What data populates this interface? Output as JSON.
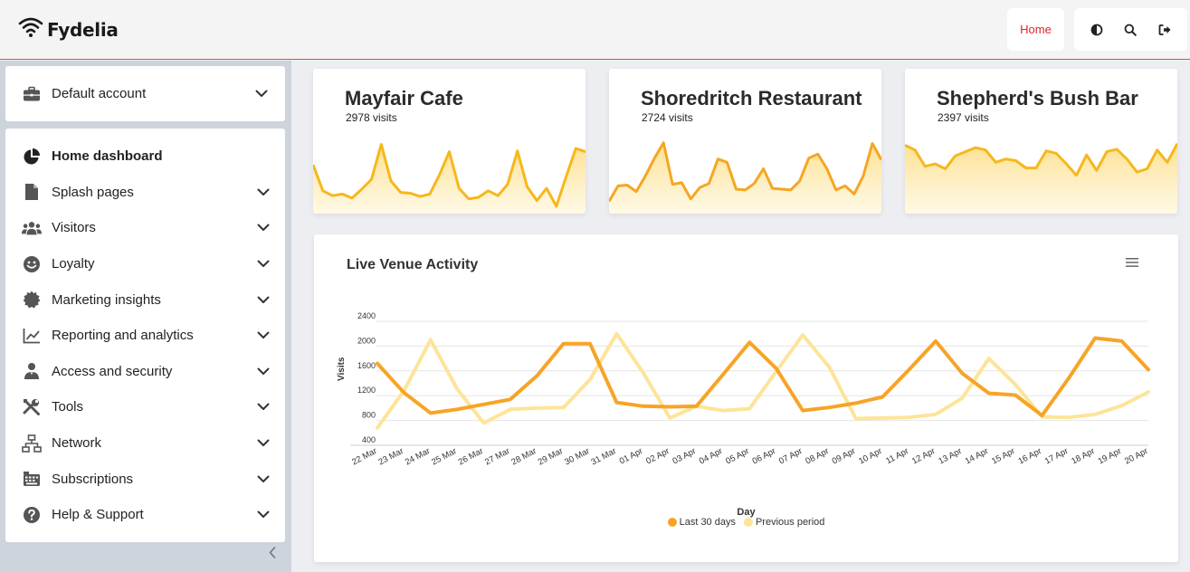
{
  "header": {
    "brand": "Fydelia",
    "home_label": "Home",
    "icons": [
      "wifi-icon",
      "contrast-icon",
      "search-icon",
      "logout-icon"
    ],
    "accent_color": "#e02424"
  },
  "sidebar": {
    "account_label": "Default account",
    "items": [
      {
        "label": "Home dashboard",
        "icon": "pie-chart-icon",
        "active": true,
        "has_children": false
      },
      {
        "label": "Splash pages",
        "icon": "file-icon",
        "has_children": true
      },
      {
        "label": "Visitors",
        "icon": "users-icon",
        "has_children": true
      },
      {
        "label": "Loyalty",
        "icon": "smile-icon",
        "has_children": true
      },
      {
        "label": "Marketing insights",
        "icon": "certificate-icon",
        "has_children": true
      },
      {
        "label": "Reporting and analytics",
        "icon": "line-chart-icon",
        "has_children": true
      },
      {
        "label": "Access and security",
        "icon": "user-shield-icon",
        "has_children": true
      },
      {
        "label": "Tools",
        "icon": "tools-icon",
        "has_children": true
      },
      {
        "label": "Network",
        "icon": "network-icon",
        "has_children": true
      },
      {
        "label": "Subscriptions",
        "icon": "keyboard-icon",
        "has_children": true
      },
      {
        "label": "Help & Support",
        "icon": "question-icon",
        "has_children": true
      }
    ]
  },
  "venues": [
    {
      "name": "Mayfair Cafe",
      "visits": "2978 visits",
      "trend": [
        60,
        28,
        22,
        24,
        19,
        30,
        42,
        85,
        40,
        26,
        25,
        21,
        24,
        48,
        76,
        31,
        18,
        20,
        28,
        22,
        36,
        77,
        33,
        16,
        31,
        9,
        45,
        80,
        76
      ]
    },
    {
      "name": "Shoredritch Restaurant",
      "visits": "2724 visits",
      "trend": [
        15,
        34,
        35,
        27,
        46,
        68,
        87,
        36,
        38,
        18,
        32,
        37,
        67,
        63,
        30,
        29,
        37,
        55,
        31,
        30,
        29,
        40,
        68,
        73,
        55,
        29,
        34,
        24,
        46,
        86,
        66
      ]
    },
    {
      "name": "Shepherd's Bush Bar",
      "visits": "2397 visits",
      "trend": [
        84,
        78,
        58,
        61,
        55,
        71,
        76,
        81,
        78,
        63,
        67,
        65,
        56,
        56,
        77,
        74,
        61,
        47,
        72,
        53,
        76,
        79,
        67,
        51,
        55,
        78,
        63,
        86
      ]
    }
  ],
  "activity": {
    "title": "Live Venue Activity",
    "menu_icon": "menu-icon"
  },
  "chart_data": {
    "type": "line",
    "title": "Live Venue Activity",
    "xlabel": "Day",
    "ylabel": "Visits",
    "categories": [
      "22 Mar",
      "23 Mar",
      "24 Mar",
      "25 Mar",
      "26 Mar",
      "27 Mar",
      "28 Mar",
      "29 Mar",
      "30 Mar",
      "31 Mar",
      "01 Apr",
      "02 Apr",
      "03 Apr",
      "04 Apr",
      "05 Apr",
      "06 Apr",
      "07 Apr",
      "08 Apr",
      "09 Apr",
      "10 Apr",
      "11 Apr",
      "12 Apr",
      "13 Apr",
      "14 Apr",
      "15 Apr",
      "16 Apr",
      "17 Apr",
      "18 Apr",
      "19 Apr",
      "20 Apr"
    ],
    "ylim": [
      400,
      2400
    ],
    "yticks": [
      400,
      800,
      1200,
      1600,
      2000,
      2400
    ],
    "grid": true,
    "legend_position": "bottom-center",
    "series": [
      {
        "name": "Last 30 days",
        "color": "#f7a426",
        "values": [
          1720,
          1250,
          920,
          980,
          1060,
          1140,
          1520,
          2040,
          2040,
          1090,
          1030,
          1020,
          1030,
          1540,
          2060,
          1640,
          960,
          1010,
          1080,
          1180,
          1620,
          2080,
          1560,
          1240,
          1210,
          880,
          1480,
          2130,
          2080,
          1620
        ]
      },
      {
        "name": "Previous period",
        "color": "#fde499",
        "values": [
          680,
          1280,
          2100,
          1310,
          760,
          980,
          1000,
          1010,
          1460,
          2200,
          1570,
          840,
          1030,
          960,
          990,
          1590,
          2180,
          1660,
          830,
          840,
          850,
          900,
          1160,
          1800,
          1380,
          860,
          850,
          900,
          1040,
          1260
        ]
      }
    ]
  }
}
